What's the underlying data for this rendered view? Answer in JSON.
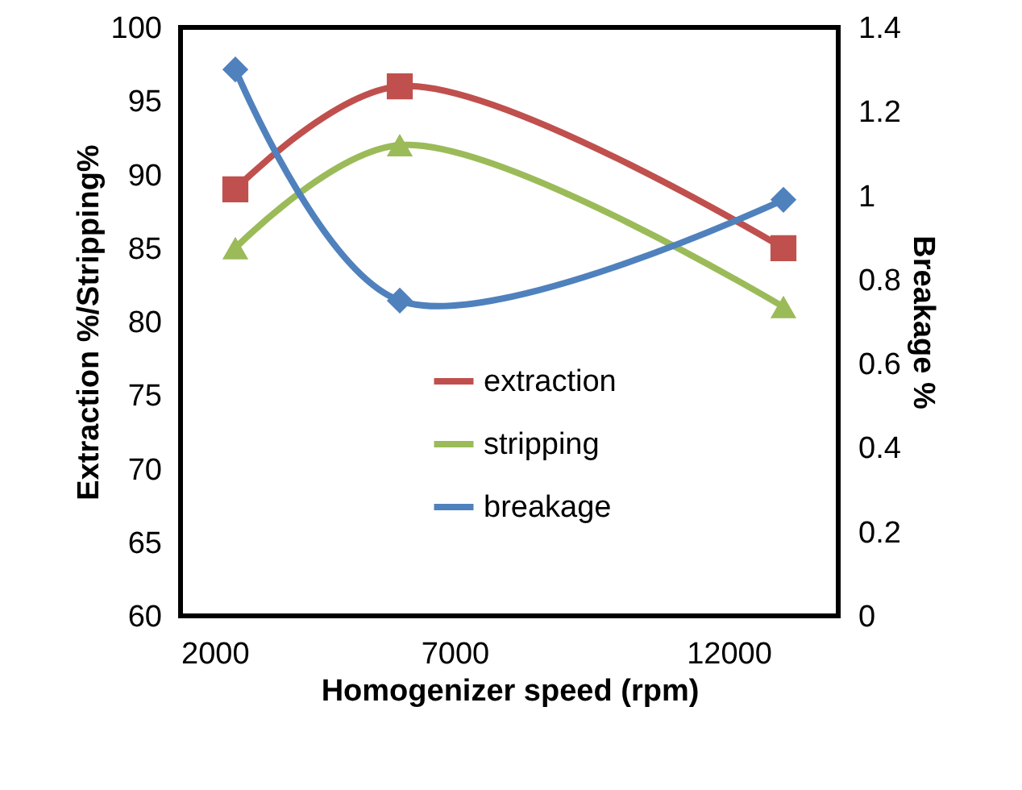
{
  "chart_data": {
    "type": "line",
    "xlabel": "Homogenizer speed (rpm)",
    "ylabel": "Extraction %/Stripping%",
    "y2label": "Breakage %",
    "x": [
      3000,
      6000,
      13000
    ],
    "series": [
      {
        "name": "extraction",
        "color": "#c0504d",
        "values": [
          89,
          96,
          85
        ],
        "marker": "square"
      },
      {
        "name": "stripping",
        "color": "#9bbb59",
        "values": [
          85,
          92,
          81
        ],
        "marker": "triangle"
      },
      {
        "name": "breakage",
        "color": "#4f81bd",
        "values": [
          1.3,
          0.75,
          0.99
        ],
        "marker": "diamond",
        "axis": "y2"
      }
    ],
    "xlim": [
      2000,
      14000
    ],
    "xticks": [
      2000,
      7000,
      12000
    ],
    "ylim": [
      60,
      100
    ],
    "yticks": [
      60,
      65,
      70,
      75,
      80,
      85,
      90,
      95,
      100
    ],
    "y2lim": [
      0,
      1.4
    ],
    "y2ticks": [
      0,
      0.2,
      0.4,
      0.6,
      0.8,
      1,
      1.2,
      1.4
    ],
    "grid": false,
    "legend": "right",
    "line_style": "solid"
  }
}
